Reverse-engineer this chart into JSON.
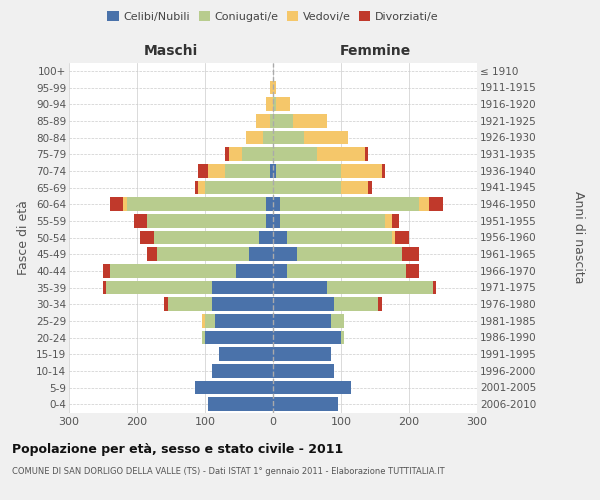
{
  "age_groups": [
    "0-4",
    "5-9",
    "10-14",
    "15-19",
    "20-24",
    "25-29",
    "30-34",
    "35-39",
    "40-44",
    "45-49",
    "50-54",
    "55-59",
    "60-64",
    "65-69",
    "70-74",
    "75-79",
    "80-84",
    "85-89",
    "90-94",
    "95-99",
    "100+"
  ],
  "birth_years": [
    "2006-2010",
    "2001-2005",
    "1996-2000",
    "1991-1995",
    "1986-1990",
    "1981-1985",
    "1976-1980",
    "1971-1975",
    "1966-1970",
    "1961-1965",
    "1956-1960",
    "1951-1955",
    "1946-1950",
    "1941-1945",
    "1936-1940",
    "1931-1935",
    "1926-1930",
    "1921-1925",
    "1916-1920",
    "1911-1915",
    "≤ 1910"
  ],
  "colors": {
    "celibi": "#4a72aa",
    "coniugati": "#b8cc8e",
    "vedovi": "#f5c76a",
    "divorziati": "#c0392b"
  },
  "males": {
    "celibi": [
      95,
      115,
      90,
      80,
      100,
      85,
      90,
      90,
      55,
      35,
      20,
      10,
      10,
      0,
      5,
      0,
      0,
      0,
      0,
      0,
      0
    ],
    "coniugati": [
      0,
      0,
      0,
      0,
      5,
      15,
      65,
      155,
      185,
      135,
      155,
      175,
      205,
      100,
      65,
      45,
      15,
      5,
      0,
      0,
      0
    ],
    "vedovi": [
      0,
      0,
      0,
      0,
      0,
      5,
      0,
      0,
      0,
      0,
      0,
      0,
      5,
      10,
      25,
      20,
      25,
      20,
      10,
      5,
      0
    ],
    "divorziati": [
      0,
      0,
      0,
      0,
      0,
      0,
      5,
      5,
      10,
      15,
      20,
      20,
      20,
      5,
      15,
      5,
      0,
      0,
      0,
      0,
      0
    ]
  },
  "females": {
    "nubili": [
      95,
      115,
      90,
      85,
      100,
      85,
      90,
      80,
      20,
      35,
      20,
      10,
      10,
      0,
      5,
      0,
      0,
      0,
      0,
      0,
      0
    ],
    "coniugate": [
      0,
      0,
      0,
      0,
      5,
      20,
      65,
      155,
      175,
      155,
      155,
      155,
      205,
      100,
      95,
      65,
      45,
      30,
      5,
      0,
      0
    ],
    "vedove": [
      0,
      0,
      0,
      0,
      0,
      0,
      0,
      0,
      0,
      0,
      5,
      10,
      15,
      40,
      60,
      70,
      65,
      50,
      20,
      5,
      0
    ],
    "divorziate": [
      0,
      0,
      0,
      0,
      0,
      0,
      5,
      5,
      20,
      25,
      20,
      10,
      20,
      5,
      5,
      5,
      0,
      0,
      0,
      0,
      0
    ]
  },
  "xlim": 300,
  "title": "Popolazione per età, sesso e stato civile - 2011",
  "subtitle": "COMUNE DI SAN DORLIGO DELLA VALLE (TS) - Dati ISTAT 1° gennaio 2011 - Elaborazione TUTTITALIA.IT",
  "ylabel_left": "Fasce di età",
  "ylabel_right": "Anni di nascita",
  "xlabel_left": "Maschi",
  "xlabel_right": "Femmine",
  "bg_color": "#f0f0f0",
  "plot_bg_color": "#ffffff"
}
